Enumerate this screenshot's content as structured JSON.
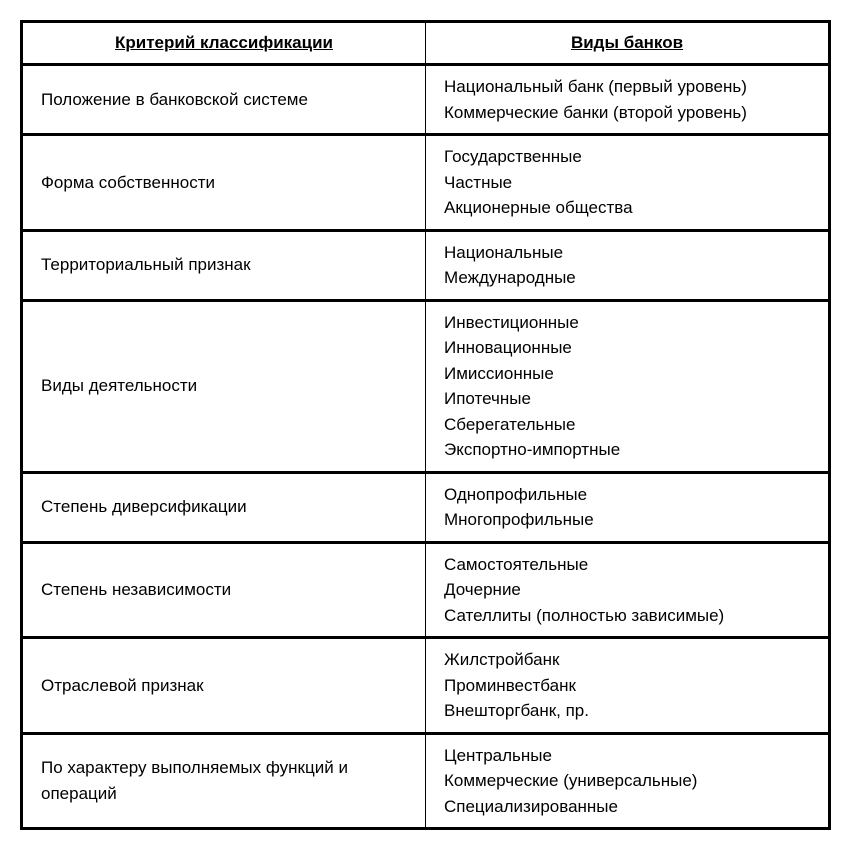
{
  "table": {
    "headers": {
      "criteria": "Критерий классификации",
      "types": "Виды банков"
    },
    "rows": [
      {
        "criteria": "Положение в банковской системе",
        "types": [
          "Национальный банк (первый уровень)",
          "Коммерческие банки (второй уровень)"
        ]
      },
      {
        "criteria": "Форма собственности",
        "types": [
          "Государственные",
          "Частные",
          "Акционерные общества"
        ]
      },
      {
        "criteria": "Территориальный признак",
        "types": [
          "Национальные",
          "Международные"
        ]
      },
      {
        "criteria": "Виды деятельности",
        "types": [
          "Инвестиционные",
          "Инновационные",
          "Имиссионные",
          "Ипотечные",
          "Сберегательные",
          "Экспортно-импортные"
        ]
      },
      {
        "criteria": "Степень диверсификации",
        "types": [
          "Однопрофильные",
          "Многопрофильные"
        ]
      },
      {
        "criteria": "Степень независимости",
        "types": [
          "Самостоятельные",
          "Дочерние",
          "Сателлиты (полностью зависимые)"
        ]
      },
      {
        "criteria": "Отраслевой признак",
        "types": [
          "Жилстройбанк",
          "Проминвестбанк",
          "Внешторгбанк, пр."
        ]
      },
      {
        "criteria": "По характеру выполняемых функций и операций",
        "types": [
          "Центральные",
          "Коммерческие (универсальные)",
          "Специализированные"
        ]
      }
    ],
    "styling": {
      "border_color": "#000000",
      "outer_border_width": 3,
      "row_separator_width": 3,
      "col_separator_width": 1,
      "background_color": "#ffffff",
      "font_size": 17,
      "header_font_weight": "bold",
      "header_underline": true,
      "cell_padding_v": 8,
      "cell_padding_h": 18,
      "line_height": 1.5
    }
  }
}
